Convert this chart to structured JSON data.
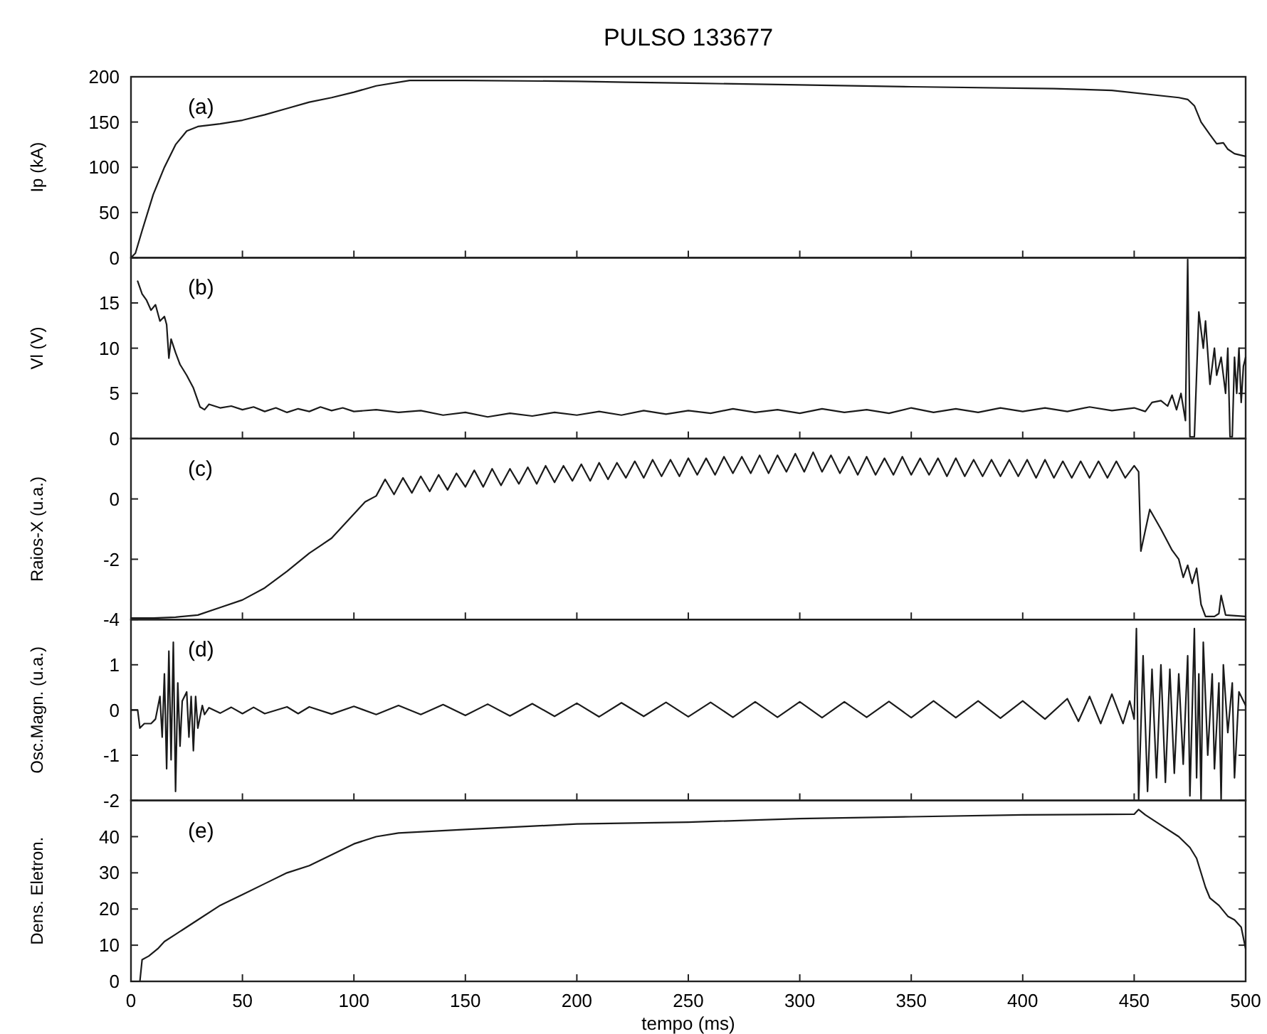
{
  "chart_data": [
    {
      "type": "line",
      "title": "PULSO 133677",
      "ylabel": "Ip (kA)",
      "annotations": [
        "(a)"
      ],
      "xlim": [
        0,
        500
      ],
      "xticks": [
        0,
        50,
        100,
        150,
        200,
        250,
        300,
        350,
        400,
        450,
        500
      ],
      "ylim": [
        0,
        200
      ],
      "yticks": [
        0,
        50,
        100,
        150,
        200
      ],
      "tick_labels": "y",
      "series": [
        {
          "color": "#1a1a1a",
          "x": [
            0,
            2,
            5,
            10,
            15,
            20,
            25,
            30,
            40,
            50,
            60,
            70,
            80,
            90,
            100,
            110,
            125,
            150,
            200,
            222,
            250,
            300,
            350,
            414,
            440,
            470,
            474,
            477,
            480,
            484,
            487,
            490,
            492,
            495,
            500
          ],
          "values": [
            0,
            5,
            30,
            70,
            100,
            125,
            140,
            145,
            148,
            152,
            158,
            165,
            172,
            177,
            183,
            190,
            196,
            196,
            195,
            194,
            193,
            191,
            189,
            187,
            185,
            177,
            175,
            168,
            150,
            136,
            126,
            127,
            120,
            115,
            112
          ]
        }
      ]
    },
    {
      "type": "line",
      "ylabel": "Vl (V)",
      "annotations": [
        "(b)"
      ],
      "xlim": [
        0,
        500
      ],
      "xticks": [
        0,
        50,
        100,
        150,
        200,
        250,
        300,
        350,
        400,
        450,
        500
      ],
      "ylim": [
        0,
        20
      ],
      "yticks": [
        0,
        5,
        10,
        15
      ],
      "tick_labels": "y",
      "series": [
        {
          "color": "#1a1a1a",
          "x": [
            3,
            5,
            7,
            9,
            11,
            13,
            15,
            16,
            17,
            18,
            20,
            22,
            25,
            28,
            31,
            33,
            35,
            40,
            45,
            50,
            55,
            60,
            65,
            70,
            75,
            80,
            85,
            90,
            95,
            100,
            110,
            120,
            130,
            140,
            150,
            160,
            170,
            180,
            190,
            200,
            210,
            220,
            230,
            240,
            250,
            260,
            270,
            280,
            290,
            300,
            310,
            320,
            330,
            340,
            350,
            360,
            370,
            380,
            390,
            400,
            410,
            420,
            430,
            440,
            450,
            455,
            458,
            462,
            465,
            467,
            469,
            471,
            473,
            474,
            475,
            477,
            479,
            481,
            482,
            484,
            486,
            487,
            489,
            491,
            492,
            493,
            494,
            495,
            496,
            497,
            498,
            499,
            500
          ],
          "values": [
            17.4,
            16,
            15.3,
            14.2,
            14.8,
            13,
            13.5,
            12.6,
            8.9,
            11,
            9.5,
            8.2,
            7,
            5.6,
            3.5,
            3.2,
            3.8,
            3.4,
            3.6,
            3.2,
            3.5,
            3.0,
            3.4,
            2.9,
            3.3,
            3.0,
            3.5,
            3.1,
            3.4,
            3.0,
            3.2,
            2.9,
            3.1,
            2.6,
            2.9,
            2.4,
            2.8,
            2.5,
            2.9,
            2.6,
            3.0,
            2.6,
            3.1,
            2.7,
            3.1,
            2.8,
            3.3,
            2.9,
            3.2,
            2.8,
            3.3,
            2.9,
            3.2,
            2.8,
            3.4,
            2.9,
            3.3,
            2.9,
            3.4,
            3.0,
            3.4,
            3.0,
            3.5,
            3.1,
            3.4,
            3.0,
            4.0,
            4.2,
            3.6,
            4.8,
            3.2,
            5,
            2,
            19.8,
            0.2,
            0.2,
            14,
            10,
            13,
            6,
            10,
            7,
            9,
            5,
            10,
            0.2,
            0.2,
            9,
            5,
            10,
            4,
            8,
            9
          ]
        }
      ]
    },
    {
      "type": "line",
      "ylabel": "Raios-X (u.a.)",
      "annotations": [
        "(c)"
      ],
      "xlim": [
        0,
        500
      ],
      "xticks": [
        0,
        50,
        100,
        150,
        200,
        250,
        300,
        350,
        400,
        450,
        500
      ],
      "ylim": [
        -4,
        2
      ],
      "yticks": [
        -4,
        -2,
        0
      ],
      "tick_labels": "y",
      "series": [
        {
          "color": "#1a1a1a",
          "x": [
            0,
            10,
            20,
            30,
            40,
            50,
            60,
            70,
            75,
            80,
            85,
            90,
            95,
            100,
            105,
            110,
            114,
            118,
            122,
            126,
            130,
            134,
            138,
            142,
            146,
            150,
            154,
            158,
            162,
            166,
            170,
            174,
            178,
            182,
            186,
            190,
            194,
            198,
            202,
            206,
            210,
            214,
            218,
            222,
            226,
            230,
            234,
            238,
            242,
            246,
            250,
            254,
            258,
            262,
            266,
            270,
            274,
            278,
            282,
            286,
            290,
            294,
            298,
            302,
            306,
            310,
            314,
            318,
            322,
            326,
            330,
            334,
            338,
            342,
            346,
            350,
            354,
            358,
            362,
            366,
            370,
            374,
            378,
            382,
            386,
            390,
            394,
            398,
            402,
            406,
            410,
            414,
            418,
            422,
            426,
            430,
            434,
            438,
            442,
            446,
            450,
            452,
            453,
            457,
            462,
            467,
            470,
            472,
            474,
            476,
            478,
            480,
            482,
            486,
            488,
            489,
            491,
            500
          ],
          "values": [
            -3.95,
            -3.95,
            -3.92,
            -3.85,
            -3.6,
            -3.35,
            -2.95,
            -2.4,
            -2.1,
            -1.8,
            -1.55,
            -1.3,
            -0.9,
            -0.5,
            -0.1,
            0.1,
            0.65,
            0.15,
            0.7,
            0.2,
            0.75,
            0.25,
            0.8,
            0.3,
            0.85,
            0.4,
            0.95,
            0.4,
            1.0,
            0.45,
            1.0,
            0.5,
            1.05,
            0.5,
            1.1,
            0.55,
            1.1,
            0.6,
            1.15,
            0.6,
            1.2,
            0.65,
            1.2,
            0.7,
            1.25,
            0.7,
            1.3,
            0.75,
            1.3,
            0.75,
            1.35,
            0.8,
            1.35,
            0.8,
            1.4,
            0.85,
            1.4,
            0.85,
            1.45,
            0.85,
            1.45,
            0.9,
            1.5,
            0.9,
            1.55,
            0.9,
            1.45,
            0.85,
            1.4,
            0.8,
            1.4,
            0.8,
            1.35,
            0.8,
            1.4,
            0.8,
            1.35,
            0.8,
            1.35,
            0.75,
            1.35,
            0.75,
            1.3,
            0.75,
            1.3,
            0.75,
            1.3,
            0.75,
            1.3,
            0.7,
            1.3,
            0.7,
            1.25,
            0.7,
            1.25,
            0.7,
            1.25,
            0.7,
            1.25,
            0.7,
            1.1,
            0.9,
            -1.73,
            -0.35,
            -1.0,
            -1.7,
            -2.0,
            -2.6,
            -2.2,
            -2.8,
            -2.3,
            -3.5,
            -3.9,
            -3.9,
            -3.8,
            -3.2,
            -3.85,
            -3.9
          ]
        }
      ]
    },
    {
      "type": "line",
      "ylabel": "Osc.Magn. (u.a.)",
      "annotations": [
        "(d)"
      ],
      "xlim": [
        0,
        500
      ],
      "xticks": [
        0,
        50,
        100,
        150,
        200,
        250,
        300,
        350,
        400,
        450,
        500
      ],
      "ylim": [
        -2,
        2
      ],
      "yticks": [
        -2,
        -1,
        0,
        1
      ],
      "tick_labels": "y",
      "series": [
        {
          "color": "#1a1a1a",
          "x": [
            0,
            3,
            4,
            6,
            9,
            11,
            13,
            14,
            15,
            16,
            17,
            18,
            19,
            20,
            21,
            22,
            23,
            25,
            26,
            27,
            28,
            29,
            30,
            32,
            33,
            35,
            40,
            45,
            50,
            55,
            60,
            70,
            75,
            80,
            90,
            100,
            110,
            120,
            130,
            140,
            150,
            160,
            170,
            180,
            190,
            200,
            210,
            220,
            230,
            240,
            250,
            260,
            270,
            280,
            290,
            300,
            310,
            320,
            330,
            340,
            350,
            360,
            370,
            380,
            390,
            400,
            410,
            420,
            425,
            430,
            435,
            440,
            445,
            448,
            450,
            451,
            452,
            454,
            456,
            458,
            460,
            462,
            464,
            466,
            468,
            470,
            472,
            474,
            475,
            477,
            478,
            479,
            480,
            481,
            483,
            485,
            486,
            488,
            489,
            490,
            492,
            494,
            495,
            497,
            499,
            500
          ],
          "values": [
            0,
            0,
            -0.4,
            -0.3,
            -0.3,
            -0.2,
            0.3,
            -0.6,
            0.8,
            -1.3,
            1.3,
            -1.1,
            1.5,
            -1.8,
            0.6,
            -0.8,
            0.2,
            0.4,
            -0.6,
            0.3,
            -0.9,
            0.3,
            -0.4,
            0.1,
            -0.1,
            0.05,
            -0.07,
            0.06,
            -0.08,
            0.06,
            -0.08,
            0.07,
            -0.08,
            0.07,
            -0.09,
            0.08,
            -0.1,
            0.1,
            -0.1,
            0.12,
            -0.12,
            0.13,
            -0.13,
            0.14,
            -0.14,
            0.15,
            -0.15,
            0.16,
            -0.14,
            0.17,
            -0.15,
            0.17,
            -0.16,
            0.18,
            -0.16,
            0.18,
            -0.17,
            0.18,
            -0.16,
            0.19,
            -0.17,
            0.2,
            -0.17,
            0.2,
            -0.18,
            0.2,
            -0.2,
            0.25,
            -0.25,
            0.3,
            -0.3,
            0.35,
            -0.3,
            0.2,
            -0.2,
            1.8,
            -2,
            1.2,
            -1.8,
            0.9,
            -1.5,
            1.0,
            -1.6,
            0.9,
            -1.4,
            0.8,
            -1.2,
            1.2,
            -1.9,
            1.8,
            -1.5,
            0.8,
            -2,
            1.5,
            -1,
            0.8,
            -1.3,
            0.6,
            -2,
            1.0,
            -0.5,
            0.6,
            -1.5,
            0.4,
            0.2,
            0.1
          ]
        }
      ]
    },
    {
      "type": "line",
      "ylabel": "Dens. Eletron.",
      "xlabel": "tempo (ms)",
      "annotations": [
        "(e)"
      ],
      "xlim": [
        0,
        500
      ],
      "xticks": [
        0,
        50,
        100,
        150,
        200,
        250,
        300,
        350,
        400,
        450,
        500
      ],
      "ylim": [
        0,
        50
      ],
      "yticks": [
        0,
        10,
        20,
        30,
        40
      ],
      "series": [
        {
          "color": "#1a1a1a",
          "x": [
            0,
            2,
            4,
            5,
            8,
            12,
            15,
            20,
            30,
            40,
            50,
            60,
            70,
            80,
            90,
            100,
            110,
            120,
            150,
            200,
            250,
            300,
            350,
            400,
            450,
            452,
            455,
            460,
            470,
            475,
            478,
            482,
            484,
            488,
            492,
            495,
            498,
            500
          ],
          "values": [
            0,
            0,
            0,
            6,
            7,
            9,
            11,
            13,
            17,
            21,
            24,
            27,
            30,
            32,
            35,
            38,
            40,
            41,
            42,
            43.5,
            44,
            45,
            45.5,
            46,
            46.2,
            47.5,
            46,
            44,
            40,
            37,
            34,
            26,
            23,
            21,
            18,
            17,
            15,
            9
          ]
        }
      ]
    }
  ]
}
